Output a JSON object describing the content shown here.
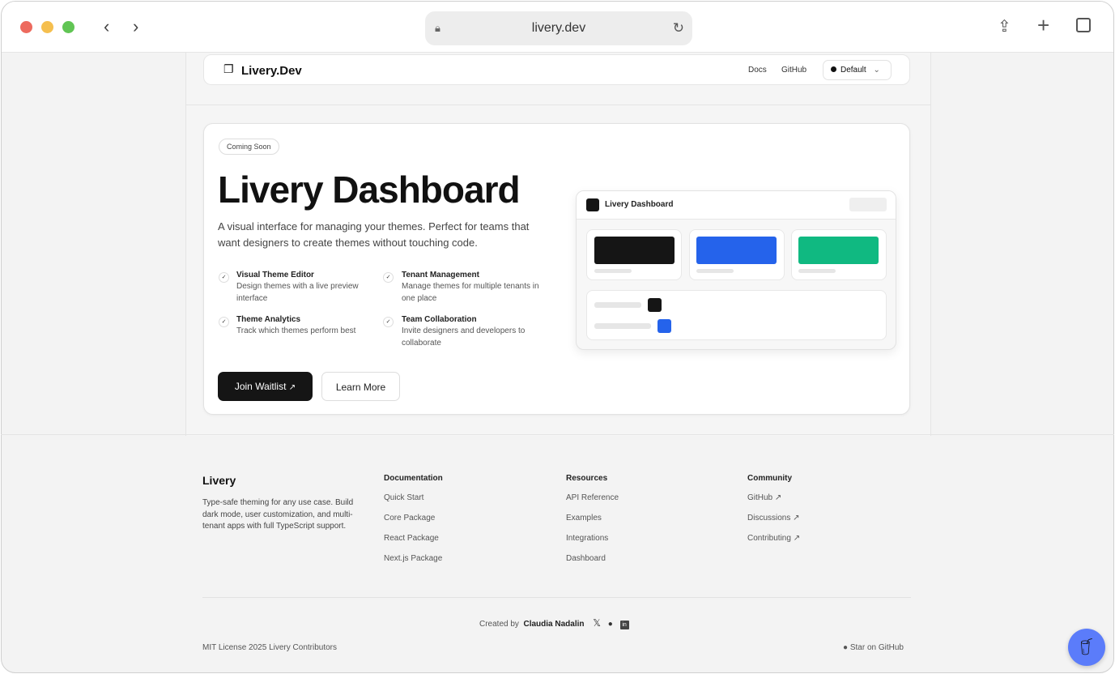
{
  "browser": {
    "url": "livery.dev"
  },
  "header": {
    "logo": "Livery.Dev",
    "docs": "Docs",
    "github": "GitHub",
    "theme": "Default"
  },
  "hero": {
    "badge": "Coming Soon",
    "title": "Livery Dashboard",
    "description": "A visual interface for managing your themes. Perfect for teams that want designers to create themes without touching code.",
    "features": [
      {
        "title": "Visual Theme Editor",
        "desc": "Design themes with a live preview interface"
      },
      {
        "title": "Tenant Management",
        "desc": "Manage themes for multiple tenants in one place"
      },
      {
        "title": "Theme Analytics",
        "desc": "Track which themes perform best"
      },
      {
        "title": "Team Collaboration",
        "desc": "Invite designers and developers to collaborate"
      }
    ],
    "join": "Join Waitlist",
    "learn": "Learn More",
    "mock": {
      "title": "Livery Dashboard",
      "colors": [
        "#151515",
        "#2563eb",
        "#10b981"
      ]
    }
  },
  "footer": {
    "brand": "Livery",
    "tagline": "Type-safe theming for any use case. Build dark mode, user customization, and multi-tenant apps with full TypeScript support.",
    "columns": [
      {
        "title": "Documentation",
        "links": [
          "Quick Start",
          "Core Package",
          "React Package",
          "Next.js Package"
        ]
      },
      {
        "title": "Resources",
        "links": [
          "API Reference",
          "Examples",
          "Integrations",
          "Dashboard"
        ]
      },
      {
        "title": "Community",
        "links": [
          "GitHub ↗",
          "Discussions ↗",
          "Contributing ↗"
        ]
      }
    ],
    "created_by": "Created by",
    "author": "Claudia Nadalin",
    "license": "MIT License 2025 Livery Contributors",
    "star": "Star on GitHub"
  }
}
